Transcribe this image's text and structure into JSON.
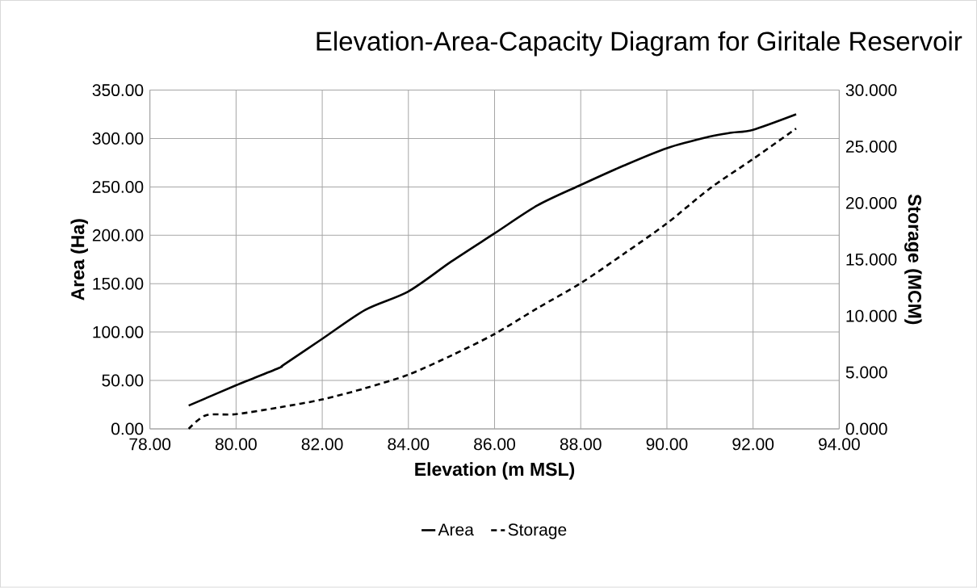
{
  "chart_data": {
    "type": "line",
    "title": "Elevation-Area-Capacity Diagram for Giritale Reservoir",
    "xlabel": "Elevation (m MSL)",
    "ylabel": "Area (Ha)",
    "y2label": "Storage (MCM)",
    "xlim": [
      78,
      94
    ],
    "xticks": [
      {
        "value": 78,
        "label": "78.00"
      },
      {
        "value": 80,
        "label": "80.00"
      },
      {
        "value": 82,
        "label": "82.00"
      },
      {
        "value": 84,
        "label": "84.00"
      },
      {
        "value": 86,
        "label": "86.00"
      },
      {
        "value": 88,
        "label": "88.00"
      },
      {
        "value": 90,
        "label": "90.00"
      },
      {
        "value": 92,
        "label": "92.00"
      },
      {
        "value": 94,
        "label": "94.00"
      }
    ],
    "ylim": [
      0,
      350
    ],
    "yticks": [
      {
        "value": 0,
        "label": "0.00"
      },
      {
        "value": 50,
        "label": "50.00"
      },
      {
        "value": 100,
        "label": "100.00"
      },
      {
        "value": 150,
        "label": "150.00"
      },
      {
        "value": 200,
        "label": "200.00"
      },
      {
        "value": 250,
        "label": "250.00"
      },
      {
        "value": 300,
        "label": "300.00"
      },
      {
        "value": 350,
        "label": "350.00"
      }
    ],
    "y2lim": [
      0,
      30
    ],
    "y2ticks": [
      {
        "value": 0,
        "label": "0.000"
      },
      {
        "value": 5,
        "label": "5.000"
      },
      {
        "value": 10,
        "label": "10.000"
      },
      {
        "value": 15,
        "label": "15.000"
      },
      {
        "value": 20,
        "label": "20.000"
      },
      {
        "value": 25,
        "label": "25.000"
      },
      {
        "value": 30,
        "label": "30.000"
      }
    ],
    "grid": true,
    "legend": "bottom",
    "marker": "none",
    "series": [
      {
        "name": "Area",
        "color": "#000000",
        "line_style": "solid",
        "x": [
          78.9,
          80,
          81,
          81.1,
          82,
          83,
          84,
          85,
          86,
          87,
          88,
          89,
          90,
          91,
          91.5,
          92,
          93
        ],
        "values": [
          24,
          45,
          63,
          66,
          93,
          123,
          142,
          173,
          202,
          231,
          252,
          272,
          290,
          302,
          306,
          309,
          325
        ]
      },
      {
        "name": "Storage",
        "color": "#000000",
        "line_style": "dashed",
        "axis": "y2",
        "x": [
          78.9,
          79.3,
          80,
          81,
          82,
          83,
          84,
          85,
          86,
          87,
          88,
          89,
          90,
          91,
          92,
          93
        ],
        "values": [
          0,
          1.2,
          1.3,
          1.9,
          2.6,
          3.6,
          4.8,
          6.5,
          8.4,
          10.7,
          12.9,
          15.5,
          18.2,
          21.3,
          23.9,
          26.6
        ]
      }
    ]
  }
}
